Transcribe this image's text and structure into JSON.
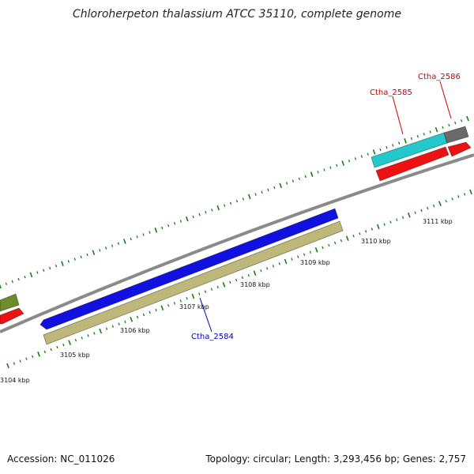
{
  "title": "Chloroherpeton thalassium ATCC 35110, complete genome",
  "footer": {
    "accession": "Accession: NC_011026",
    "summary": "Topology: circular; Length: 3,293,456 bp; Genes: 2,757"
  },
  "scale_labels": [
    "3104 kbp",
    "3105 kbp",
    "3106 kbp",
    "3107 kbp",
    "3108 kbp",
    "3109 kbp",
    "3110 kbp",
    "3111 kbp"
  ],
  "gene_labels": [
    {
      "name": "Ctha_2584",
      "color": "#0000aa"
    },
    {
      "name": "Ctha_2585",
      "color": "#cc0000"
    },
    {
      "name": "Ctha_2586",
      "color": "#cc0000"
    }
  ],
  "colors": {
    "backbone": "#8a8a8a",
    "tick": "#1a7a1a",
    "blue_feature": "#1010e0",
    "khaki_feature": "#bdb87a",
    "cyan_feature": "#22c8cc",
    "red_feature": "#ee1111",
    "gray_feature": "#6a6a6a",
    "olive_feature": "#6e8c2a"
  }
}
